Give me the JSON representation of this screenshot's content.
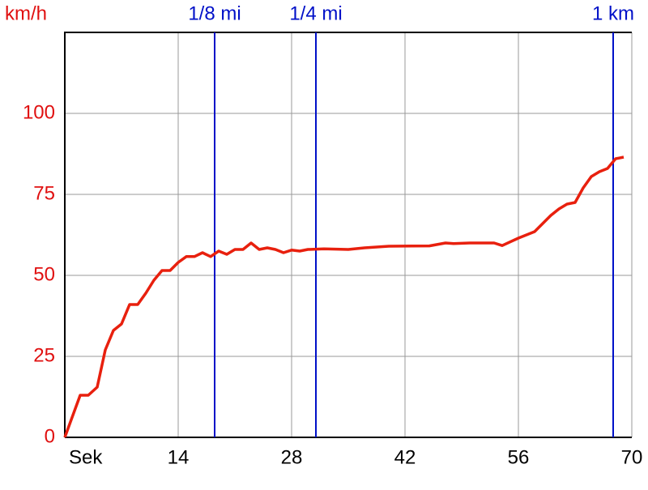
{
  "chart_data": {
    "type": "line",
    "y_label": "km/h",
    "x": [
      0,
      1.9,
      2.9,
      4,
      5,
      6,
      7,
      8,
      9,
      10,
      11,
      12,
      13,
      14,
      15,
      16,
      17,
      18,
      19,
      20,
      21,
      22,
      23,
      24,
      25,
      26,
      27,
      28,
      29,
      30,
      32,
      35,
      37,
      40,
      45,
      47,
      48,
      50,
      53,
      54,
      56,
      58,
      60,
      61,
      62,
      63,
      64,
      65,
      66,
      67,
      68,
      69
    ],
    "values": [
      0,
      13,
      13,
      15.5,
      27,
      33,
      35,
      41,
      41,
      44.5,
      48.5,
      51.5,
      51.5,
      54,
      55.8,
      55.8,
      57,
      55.8,
      57.5,
      56.5,
      58,
      58,
      60,
      58,
      58.5,
      58,
      57,
      57.8,
      57.5,
      58,
      58.2,
      58,
      58.5,
      59,
      59.1,
      60,
      59.8,
      60,
      60,
      59.2,
      61.5,
      63.5,
      68.5,
      70.5,
      72,
      72.5,
      77,
      80.5,
      82,
      83,
      86,
      86.5
    ],
    "color": "#e8200e",
    "xlim": [
      0,
      70
    ],
    "ylim": [
      0,
      125
    ],
    "xticks": [
      {
        "value": 0,
        "label": "Sek"
      },
      14,
      28,
      42,
      56,
      70
    ],
    "yticks": [
      0,
      25,
      50,
      75,
      100
    ],
    "grid": true,
    "markers": [
      {
        "x": 18.5,
        "label": "1/8 mi"
      },
      {
        "x": 31,
        "label": "1/4 mi"
      },
      {
        "x": 67.7,
        "label": "1 km"
      }
    ],
    "marker_color": "#0010c8"
  }
}
